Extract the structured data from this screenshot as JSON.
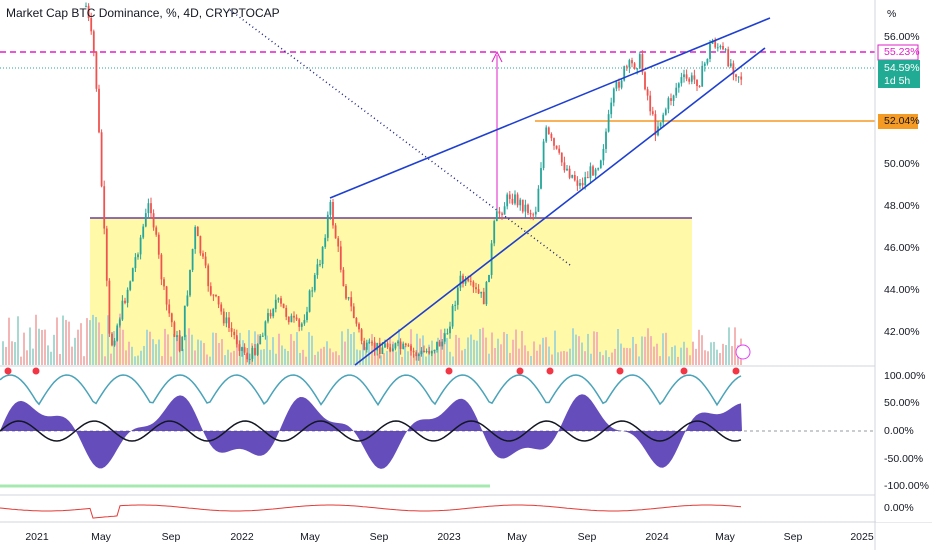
{
  "header": {
    "title": "Market Cap BTC Dominance, %, 4D, CRYPTOCAP"
  },
  "price_axis": {
    "unit": "%",
    "labels": [
      "56.00%",
      "50.00%",
      "48.00%",
      "46.00%",
      "44.00%",
      "42.00%"
    ]
  },
  "badges": [
    {
      "label": "55.23%"
    },
    {
      "label": "54.59%",
      "sub": "1d 5h"
    },
    {
      "label": "52.04%"
    }
  ],
  "oscillator_axis": {
    "labels": [
      "100.00%",
      "50.00%",
      "0.00%",
      "-50.00%",
      "-100.00%"
    ]
  },
  "lower_axis": {
    "labels": [
      "0.00%"
    ]
  },
  "time_axis": {
    "labels": [
      "2021",
      "May",
      "Sep",
      "2022",
      "May",
      "Sep",
      "2023",
      "May",
      "Sep",
      "2024",
      "May",
      "Sep",
      "2025"
    ]
  }
}
